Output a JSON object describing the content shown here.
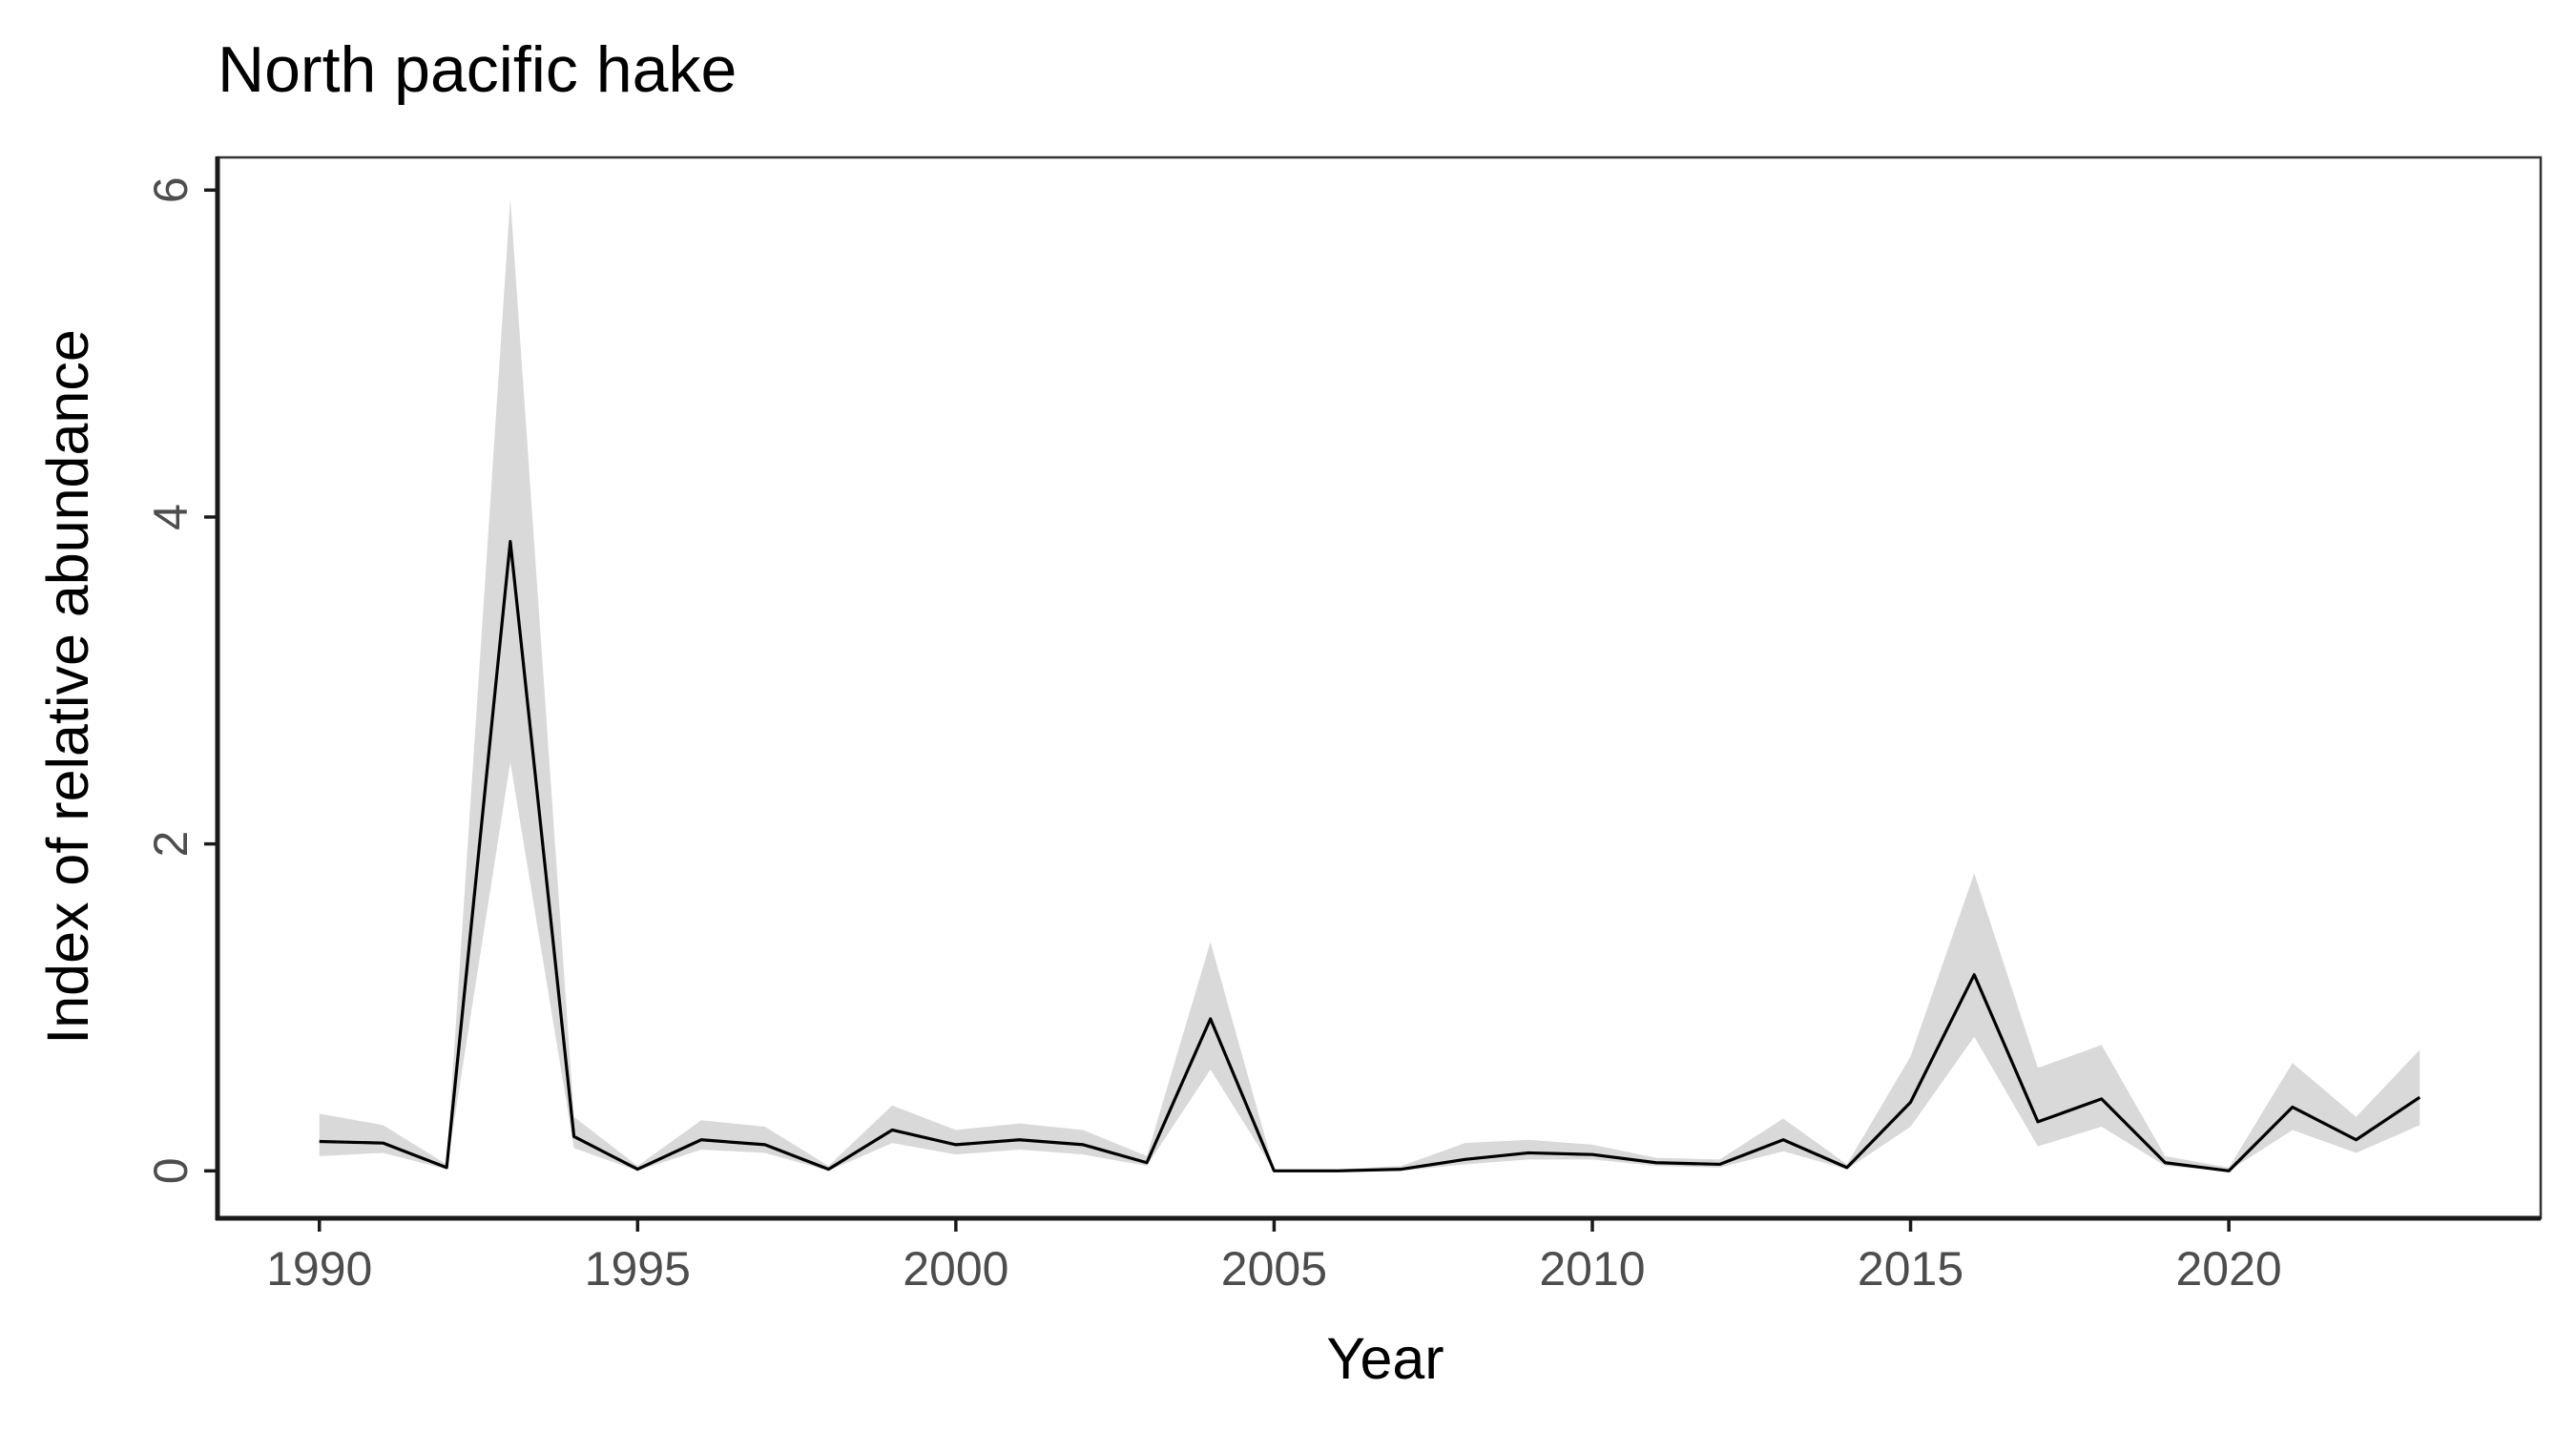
{
  "chart_data": {
    "type": "line",
    "title": "North pacific hake",
    "xlabel": "Year",
    "ylabel": "Index of relative abundance",
    "xlim": [
      1988.4,
      2024.9
    ],
    "ylim": [
      -0.29,
      6.2
    ],
    "x_ticks": [
      1990,
      1995,
      2000,
      2005,
      2010,
      2015,
      2020
    ],
    "y_ticks": [
      0,
      2,
      4,
      6
    ],
    "grid": false,
    "legend": "none",
    "colors": {
      "line": "#000000",
      "ribbon": "#d9d9d9",
      "panel_border": "#333333",
      "axis": "#1a1a1a",
      "tick_text": "#4d4d4d"
    },
    "x": [
      1990,
      1991,
      1992,
      1993,
      1994,
      1995,
      1996,
      1997,
      1998,
      1999,
      2000,
      2001,
      2002,
      2003,
      2004,
      2005,
      2006,
      2007,
      2008,
      2009,
      2010,
      2011,
      2012,
      2013,
      2014,
      2015,
      2016,
      2017,
      2018,
      2019,
      2020,
      2021,
      2022,
      2023
    ],
    "series": [
      {
        "values": [
          0.18,
          0.17,
          0.02,
          3.85,
          0.21,
          0.01,
          0.19,
          0.16,
          0.01,
          0.25,
          0.16,
          0.19,
          0.16,
          0.05,
          0.93,
          0.0,
          0.0,
          0.01,
          0.07,
          0.11,
          0.1,
          0.05,
          0.04,
          0.19,
          0.02,
          0.42,
          1.2,
          0.3,
          0.44,
          0.05,
          0.0,
          0.39,
          0.19,
          0.45
        ],
        "lower": [
          0.09,
          0.11,
          0.01,
          2.5,
          0.14,
          0.0,
          0.13,
          0.11,
          0.0,
          0.17,
          0.1,
          0.13,
          0.1,
          0.03,
          0.62,
          0.0,
          0.0,
          0.0,
          0.04,
          0.07,
          0.07,
          0.03,
          0.02,
          0.12,
          0.01,
          0.27,
          0.82,
          0.15,
          0.27,
          0.03,
          0.0,
          0.25,
          0.11,
          0.28
        ],
        "upper": [
          0.35,
          0.28,
          0.04,
          5.95,
          0.33,
          0.03,
          0.31,
          0.27,
          0.03,
          0.4,
          0.25,
          0.29,
          0.25,
          0.09,
          1.4,
          0.01,
          0.01,
          0.03,
          0.17,
          0.19,
          0.16,
          0.08,
          0.07,
          0.32,
          0.04,
          0.7,
          1.82,
          0.63,
          0.77,
          0.09,
          0.02,
          0.66,
          0.33,
          0.74
        ]
      }
    ]
  }
}
